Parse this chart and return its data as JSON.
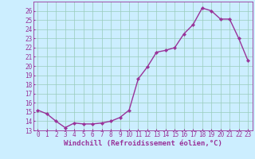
{
  "x": [
    0,
    1,
    2,
    3,
    4,
    5,
    6,
    7,
    8,
    9,
    10,
    11,
    12,
    13,
    14,
    15,
    16,
    17,
    18,
    19,
    20,
    21,
    22,
    23
  ],
  "y": [
    15.2,
    14.8,
    14.0,
    13.3,
    13.8,
    13.7,
    13.7,
    13.8,
    14.0,
    14.4,
    15.2,
    18.6,
    19.9,
    21.5,
    21.7,
    22.0,
    23.5,
    24.5,
    26.3,
    26.0,
    25.1,
    25.1,
    23.0,
    20.6
  ],
  "ylim": [
    13,
    27
  ],
  "xlim": [
    -0.5,
    23.5
  ],
  "yticks": [
    13,
    14,
    15,
    16,
    17,
    18,
    19,
    20,
    21,
    22,
    23,
    24,
    25,
    26
  ],
  "xticks": [
    0,
    1,
    2,
    3,
    4,
    5,
    6,
    7,
    8,
    9,
    10,
    11,
    12,
    13,
    14,
    15,
    16,
    17,
    18,
    19,
    20,
    21,
    22,
    23
  ],
  "line_color": "#993399",
  "marker_color": "#993399",
  "bg_color": "#cceeff",
  "grid_color": "#99ccbb",
  "axis_color": "#993399",
  "xlabel": "Windchill (Refroidissement éolien,°C)",
  "marker": "D",
  "markersize": 2.2,
  "linewidth": 1.0,
  "xlabel_fontsize": 6.5,
  "tick_fontsize": 5.5,
  "tick_color": "#993399",
  "label_color": "#993399"
}
